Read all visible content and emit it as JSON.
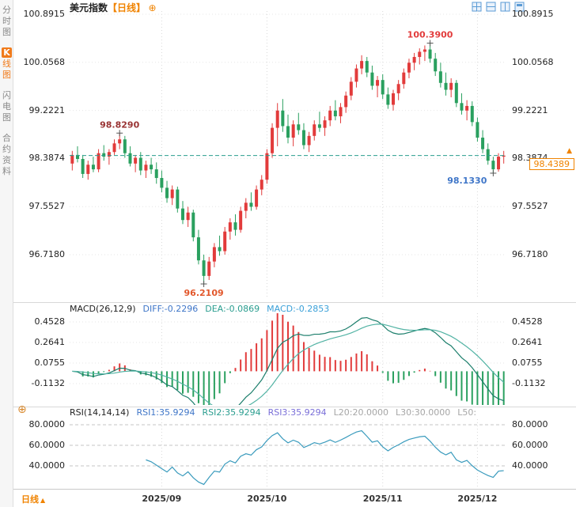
{
  "sidebar": {
    "tabs": [
      {
        "id": "time-chart",
        "label": "分时图",
        "active": false
      },
      {
        "id": "kline-chart",
        "label": "K线图",
        "badge": "K",
        "rest": "线图",
        "active": true
      },
      {
        "id": "flash-chart",
        "label": "闪电图",
        "active": false
      },
      {
        "id": "contract-info",
        "label": "合约资料",
        "active": false
      }
    ]
  },
  "header": {
    "title": "美元指数",
    "period": "【日线】",
    "plus_icon": "⊕"
  },
  "toolbar_icons": [
    {
      "name": "layout-grid-icon"
    },
    {
      "name": "layout-hsplit-icon"
    },
    {
      "name": "layout-vsplit-icon"
    },
    {
      "name": "layout-single-icon"
    }
  ],
  "main_axis": {
    "labels": [
      "100.8915",
      "100.0568",
      "99.2221",
      "98.3874",
      "97.5527",
      "96.7180"
    ]
  },
  "annotations": {
    "high_left": "98.8290",
    "high_top": "100.3900",
    "low_bottom": "96.2109",
    "low_right": "98.1330",
    "price_tag": "98.4389",
    "arrow": "▲"
  },
  "macd": {
    "name": "MACD(26,12,9)",
    "diff_label": "DIFF:-0.2296",
    "dea_label": "DEA:-0.0869",
    "macd_label": "MACD:-0.2853",
    "axis_labels": [
      "0.4528",
      "0.2641",
      "0.0755",
      "-0.1132"
    ]
  },
  "rsi": {
    "name": "RSI(14,14,14)",
    "rsi1_label": "RSI1:35.9294",
    "rsi2_label": "RSI2:35.9294",
    "rsi3_label": "RSI3:35.9294",
    "l20_label": "L20:20.0000",
    "l30_label": "L30:30.0000",
    "l50_label": "L50:",
    "axis_labels": [
      "80.0000",
      "60.0000",
      "40.0000"
    ]
  },
  "footer": {
    "period_label": "日线",
    "period_arrow": "▲",
    "dates": [
      "2025/09",
      "2025/10",
      "2025/11",
      "2025/12"
    ]
  },
  "chart_data": [
    {
      "type": "candlestick",
      "title": "美元指数 日线 (US Dollar Index, daily)",
      "ylim": [
        95.95,
        100.9464
      ],
      "y_ticks": [
        100.8915,
        100.0568,
        99.2221,
        98.3874,
        97.5527,
        96.718
      ],
      "x_labels": [
        "2025/09",
        "2025/10",
        "2025/11",
        "2025/12"
      ],
      "month_start_indices": [
        17,
        37,
        59,
        77
      ],
      "current_price": 98.4389,
      "up_color": "#e23b3b",
      "down_color": "#2aa05f",
      "marked_high": 100.39,
      "marked_low": 96.2109,
      "recent_low": 98.133,
      "earlier_high": 98.829,
      "annotations": [
        {
          "text": "98.8290",
          "index": 9,
          "attach": "high",
          "color": "#993333"
        },
        {
          "text": "100.3900",
          "index": 68,
          "attach": "high",
          "color": "#e23b3b"
        },
        {
          "text": "96.2109",
          "index": 25,
          "attach": "low",
          "color": "#e2572b"
        },
        {
          "text": "98.1330",
          "index": 80,
          "attach": "low-left",
          "color": "#3f76c8"
        }
      ],
      "ohlc": [
        [
          98.3,
          98.52,
          98.18,
          98.45
        ],
        [
          98.45,
          98.6,
          98.32,
          98.38
        ],
        [
          98.38,
          98.45,
          98.05,
          98.12
        ],
        [
          98.12,
          98.35,
          98.02,
          98.28
        ],
        [
          98.28,
          98.42,
          98.15,
          98.2
        ],
        [
          98.2,
          98.55,
          98.15,
          98.48
        ],
        [
          98.48,
          98.62,
          98.35,
          98.42
        ],
        [
          98.42,
          98.55,
          98.28,
          98.5
        ],
        [
          98.5,
          98.72,
          98.45,
          98.65
        ],
        [
          98.65,
          98.829,
          98.55,
          98.72
        ],
        [
          98.72,
          98.78,
          98.4,
          98.48
        ],
        [
          98.48,
          98.6,
          98.25,
          98.3
        ],
        [
          98.3,
          98.45,
          98.15,
          98.4
        ],
        [
          98.4,
          98.5,
          98.1,
          98.18
        ],
        [
          98.18,
          98.35,
          98.05,
          98.28
        ],
        [
          98.28,
          98.4,
          98.12,
          98.2
        ],
        [
          98.2,
          98.32,
          97.95,
          98.05
        ],
        [
          98.05,
          98.18,
          97.8,
          97.88
        ],
        [
          97.88,
          98.0,
          97.62,
          97.7
        ],
        [
          97.7,
          97.92,
          97.58,
          97.85
        ],
        [
          97.85,
          97.9,
          97.45,
          97.52
        ],
        [
          97.52,
          97.65,
          97.25,
          97.32
        ],
        [
          97.32,
          97.55,
          97.2,
          97.45
        ],
        [
          97.45,
          97.5,
          96.95,
          97.02
        ],
        [
          97.02,
          97.15,
          96.55,
          96.62
        ],
        [
          96.62,
          96.72,
          96.2109,
          96.35
        ],
        [
          96.35,
          96.68,
          96.28,
          96.6
        ],
        [
          96.6,
          96.92,
          96.5,
          96.85
        ],
        [
          96.85,
          97.05,
          96.7,
          96.78
        ],
        [
          96.78,
          97.2,
          96.72,
          97.12
        ],
        [
          97.12,
          97.35,
          96.98,
          97.28
        ],
        [
          97.28,
          97.42,
          97.05,
          97.15
        ],
        [
          97.15,
          97.55,
          97.1,
          97.48
        ],
        [
          97.48,
          97.7,
          97.35,
          97.62
        ],
        [
          97.62,
          97.8,
          97.48,
          97.55
        ],
        [
          97.55,
          97.92,
          97.5,
          97.85
        ],
        [
          97.85,
          98.1,
          97.75,
          98.02
        ],
        [
          98.02,
          98.55,
          97.95,
          98.48
        ],
        [
          98.48,
          99.0,
          98.4,
          98.92
        ],
        [
          98.92,
          99.35,
          98.6,
          99.22
        ],
        [
          99.22,
          99.42,
          98.85,
          98.95
        ],
        [
          98.95,
          99.15,
          98.65,
          98.75
        ],
        [
          98.75,
          99.05,
          98.6,
          98.98
        ],
        [
          98.98,
          99.18,
          98.8,
          98.88
        ],
        [
          98.88,
          99.0,
          98.55,
          98.62
        ],
        [
          98.62,
          98.85,
          98.5,
          98.78
        ],
        [
          98.78,
          99.05,
          98.7,
          98.98
        ],
        [
          98.98,
          99.2,
          98.85,
          98.92
        ],
        [
          98.92,
          99.12,
          98.78,
          99.05
        ],
        [
          99.05,
          99.3,
          98.95,
          99.22
        ],
        [
          99.22,
          99.4,
          99.05,
          99.12
        ],
        [
          99.12,
          99.35,
          99.0,
          99.28
        ],
        [
          99.28,
          99.55,
          99.18,
          99.48
        ],
        [
          99.48,
          99.8,
          99.4,
          99.72
        ],
        [
          99.72,
          100.02,
          99.62,
          99.95
        ],
        [
          99.95,
          100.18,
          99.85,
          100.08
        ],
        [
          100.08,
          100.15,
          99.8,
          99.88
        ],
        [
          99.88,
          100.0,
          99.58,
          99.65
        ],
        [
          99.65,
          99.82,
          99.45,
          99.75
        ],
        [
          99.75,
          99.85,
          99.42,
          99.5
        ],
        [
          99.5,
          99.62,
          99.25,
          99.32
        ],
        [
          99.32,
          99.58,
          99.22,
          99.52
        ],
        [
          99.52,
          99.75,
          99.4,
          99.68
        ],
        [
          99.68,
          99.95,
          99.6,
          99.88
        ],
        [
          99.88,
          100.12,
          99.78,
          100.05
        ],
        [
          100.05,
          100.22,
          99.92,
          100.15
        ],
        [
          100.15,
          100.3,
          100.02,
          100.24
        ],
        [
          100.24,
          100.35,
          100.08,
          100.28
        ],
        [
          100.28,
          100.39,
          100.05,
          100.12
        ],
        [
          100.12,
          100.22,
          99.82,
          99.9
        ],
        [
          99.9,
          100.05,
          99.62,
          99.7
        ],
        [
          99.7,
          99.88,
          99.48,
          99.58
        ],
        [
          99.58,
          99.78,
          99.45,
          99.7
        ],
        [
          99.7,
          99.75,
          99.28,
          99.35
        ],
        [
          99.35,
          99.52,
          99.15,
          99.22
        ],
        [
          99.22,
          99.4,
          99.05,
          99.3
        ],
        [
          99.3,
          99.38,
          98.95,
          99.02
        ],
        [
          99.02,
          99.1,
          98.68,
          98.75
        ],
        [
          98.75,
          98.88,
          98.48,
          98.55
        ],
        [
          98.55,
          98.65,
          98.28,
          98.35
        ],
        [
          98.35,
          98.42,
          98.133,
          98.2
        ],
        [
          98.2,
          98.48,
          98.16,
          98.42
        ],
        [
          98.42,
          98.52,
          98.3,
          98.4389
        ]
      ]
    },
    {
      "type": "macd",
      "params": "26,12,9",
      "diff": -0.2296,
      "dea": -0.0869,
      "macd": -0.2853,
      "ylim": [
        -0.309,
        0.5326
      ],
      "y_ticks": [
        0.4528,
        0.2641,
        0.0755,
        -0.1132
      ],
      "diff_color": "#1b7e6b",
      "dea_color": "#52b3a4"
    },
    {
      "type": "rsi",
      "params": "14,14,14",
      "rsi1": 35.9294,
      "rsi2": 35.9294,
      "rsi3": 35.9294,
      "l20": 20.0,
      "l30": 30.0,
      "ylim": [
        19.2,
        85.4
      ],
      "y_ticks": [
        80,
        60,
        40
      ],
      "line_color": "#3a9bbd"
    }
  ]
}
